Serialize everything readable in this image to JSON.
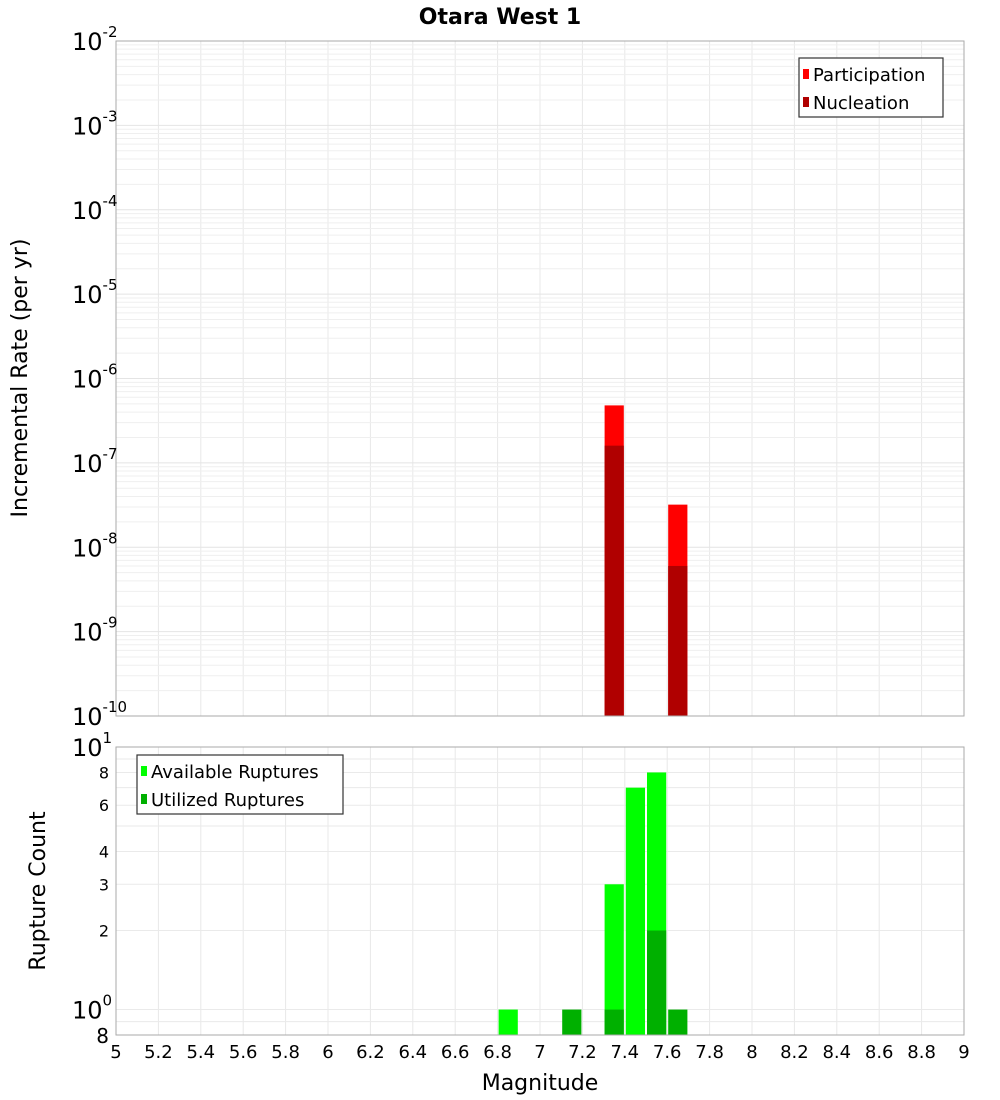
{
  "chart_data": [
    {
      "type": "bar",
      "title": "Otara West 1",
      "xlabel": "Magnitude",
      "ylabel": "Incremental Rate (per yr)",
      "yscale": "log",
      "xlim": [
        5,
        9
      ],
      "ylim": [
        1e-10,
        0.01
      ],
      "grid": true,
      "legend_position": "top-right",
      "x_ticks": [
        "5",
        "5.2",
        "5.4",
        "5.6",
        "5.8",
        "6",
        "6.2",
        "6.4",
        "6.6",
        "6.8",
        "7",
        "7.2",
        "7.4",
        "7.6",
        "7.8",
        "8",
        "8.2",
        "8.4",
        "8.6",
        "8.8",
        "9"
      ],
      "y_ticks": [
        {
          "base": "10",
          "exp": "-2"
        },
        {
          "base": "10",
          "exp": "-3"
        },
        {
          "base": "10",
          "exp": "-4"
        },
        {
          "base": "10",
          "exp": "-5"
        },
        {
          "base": "10",
          "exp": "-6"
        },
        {
          "base": "10",
          "exp": "-7"
        },
        {
          "base": "10",
          "exp": "-8"
        },
        {
          "base": "10",
          "exp": "-9"
        },
        {
          "base": "10",
          "exp": "-10"
        }
      ],
      "bin_width": 0.1,
      "series": [
        {
          "name": "Participation",
          "color": "#ff0000",
          "x": [
            7.35,
            7.65
          ],
          "values": [
            4.8e-07,
            3.2e-08
          ]
        },
        {
          "name": "Nucleation",
          "color": "#b00000",
          "x": [
            7.35,
            7.65
          ],
          "values": [
            1.6e-07,
            6e-09
          ]
        }
      ]
    },
    {
      "type": "bar",
      "title": "",
      "xlabel": "Magnitude",
      "ylabel": "Rupture Count",
      "yscale": "log",
      "xlim": [
        5,
        9
      ],
      "ylim": [
        0.8,
        10
      ],
      "grid": true,
      "legend_position": "top-left",
      "x_ticks": [
        "5",
        "5.2",
        "5.4",
        "5.6",
        "5.8",
        "6",
        "6.2",
        "6.4",
        "6.6",
        "6.8",
        "7",
        "7.2",
        "7.4",
        "7.6",
        "7.8",
        "8",
        "8.2",
        "8.4",
        "8.6",
        "8.8",
        "9"
      ],
      "y_ticks": [
        {
          "label": "10",
          "exp": "1",
          "value": 10
        },
        {
          "label": "8",
          "value": 8
        },
        {
          "label": "6",
          "value": 6
        },
        {
          "label": "4",
          "value": 4
        },
        {
          "label": "3",
          "value": 3
        },
        {
          "label": "2",
          "value": 2
        },
        {
          "label": "10",
          "exp": "0",
          "value": 1
        },
        {
          "label": "8",
          "value": 0.8
        }
      ],
      "bin_width": 0.1,
      "series": [
        {
          "name": "Available Ruptures",
          "color": "#00ff00",
          "x": [
            6.85,
            7.35,
            7.45,
            7.55
          ],
          "values": [
            1,
            3,
            7,
            8
          ]
        },
        {
          "name": "Utilized Ruptures",
          "color": "#00b000",
          "x": [
            7.15,
            7.35,
            7.55,
            7.65
          ],
          "values": [
            1,
            1,
            2,
            1
          ]
        }
      ]
    }
  ]
}
